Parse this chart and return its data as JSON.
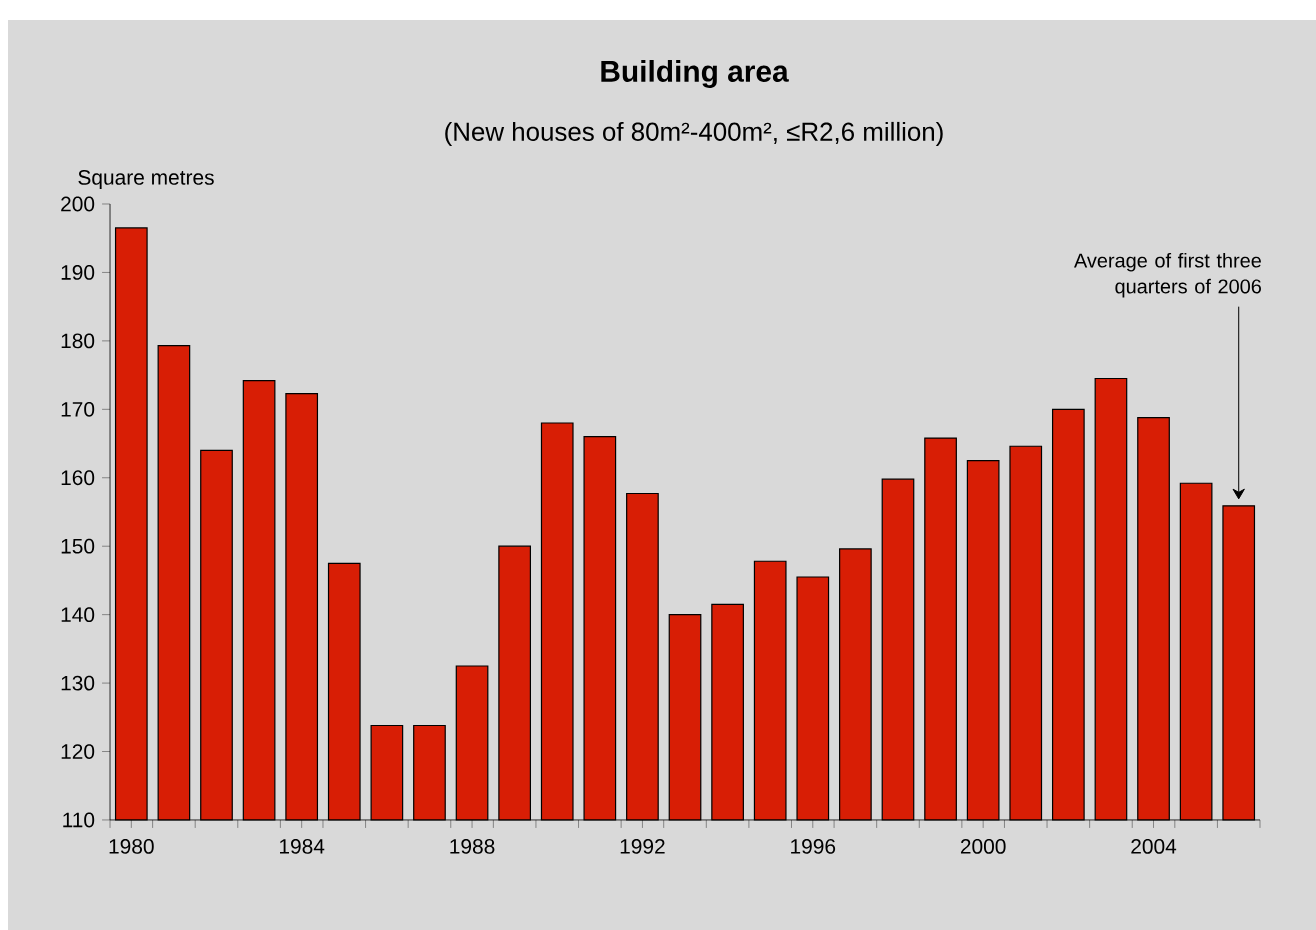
{
  "chart_data": {
    "type": "bar",
    "title": "Building area",
    "subtitle": "(New houses of 80m²-400m², ≤R2,6 million)",
    "ylabel": "Square metres",
    "x": [
      1980,
      1981,
      1982,
      1983,
      1984,
      1985,
      1986,
      1987,
      1988,
      1989,
      1990,
      1991,
      1992,
      1993,
      1994,
      1995,
      1996,
      1997,
      1998,
      1999,
      2000,
      2001,
      2002,
      2003,
      2004,
      2005,
      2006
    ],
    "values": [
      196.5,
      179.3,
      164,
      174.2,
      172.3,
      147.5,
      123.8,
      123.8,
      132.5,
      150,
      168,
      166,
      157.7,
      140,
      141.5,
      147.8,
      145.5,
      149.6,
      159.8,
      165.8,
      162.5,
      164.6,
      170,
      174.5,
      168.8,
      159.2,
      155.9
    ],
    "color": "#d81e05",
    "xlim": [
      1979.5,
      2006.5
    ],
    "xticks": [
      1980,
      1984,
      1988,
      1992,
      1996,
      2000,
      2004
    ],
    "ylim": [
      110,
      200
    ],
    "yticks": [
      110,
      120,
      130,
      140,
      150,
      160,
      170,
      180,
      190,
      200
    ],
    "annotations": [
      {
        "text": "Average of first three quarters of 2006",
        "x": 2006,
        "y": 155.9
      }
    ]
  }
}
